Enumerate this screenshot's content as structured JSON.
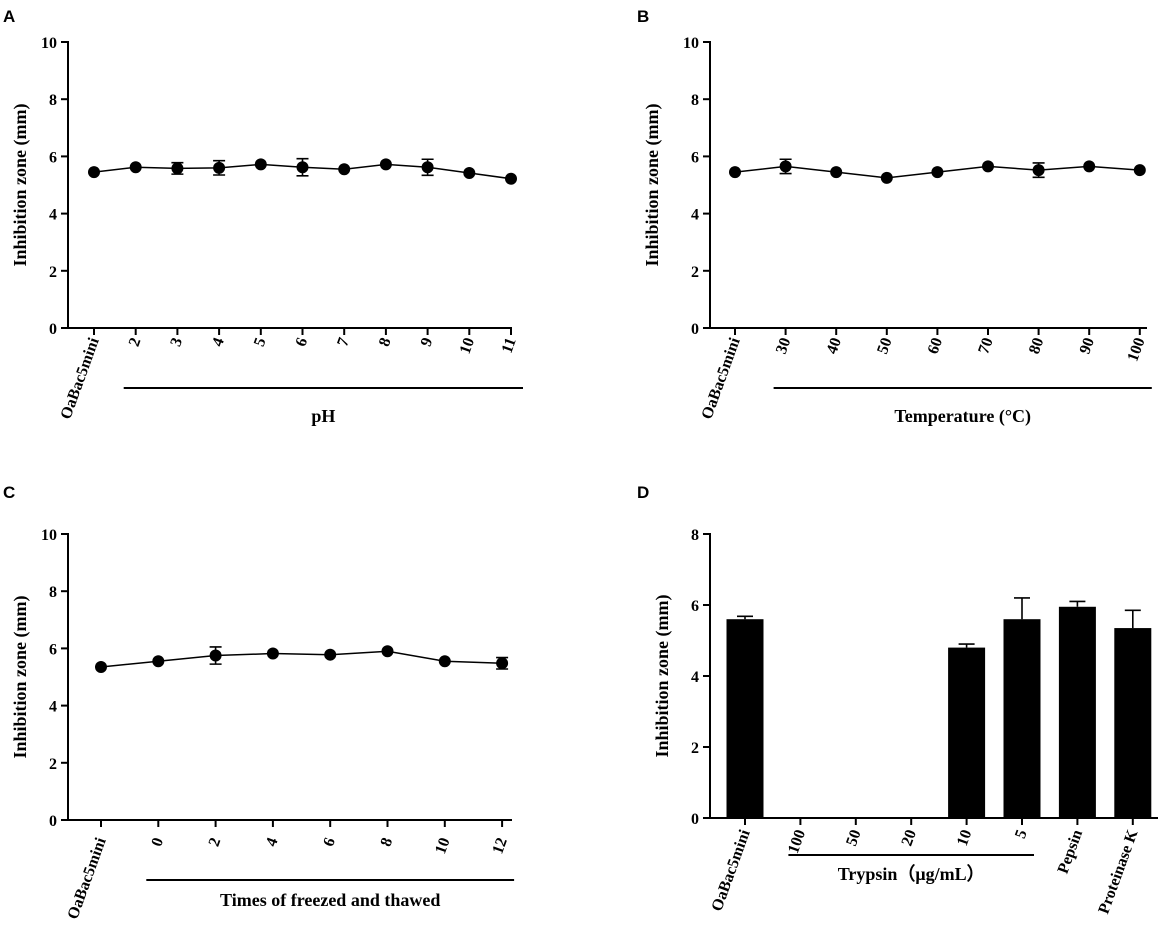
{
  "chart_data": [
    {
      "panel": "A",
      "type": "line",
      "ylabel": "Inhibition zone (mm)",
      "ylim": [
        0,
        10
      ],
      "yticks": [
        0,
        2,
        4,
        6,
        8,
        10
      ],
      "categories": [
        "OaBac5mini",
        "2",
        "3",
        "4",
        "5",
        "6",
        "7",
        "8",
        "9",
        "10",
        "11"
      ],
      "values": [
        5.45,
        5.62,
        5.58,
        5.6,
        5.72,
        5.62,
        5.55,
        5.72,
        5.62,
        5.42,
        5.22
      ],
      "errors": [
        0.05,
        0.06,
        0.2,
        0.25,
        0.05,
        0.3,
        0.08,
        0.07,
        0.28,
        0.05,
        0.06
      ],
      "group": {
        "label": "pH",
        "from": 1,
        "to": 10
      }
    },
    {
      "panel": "B",
      "type": "line",
      "ylabel": "Inhibition zone (mm)",
      "ylim": [
        0,
        10
      ],
      "yticks": [
        0,
        2,
        4,
        6,
        8,
        10
      ],
      "categories": [
        "OaBac5mini",
        "30",
        "40",
        "50",
        "60",
        "70",
        "80",
        "90",
        "100"
      ],
      "values": [
        5.45,
        5.65,
        5.45,
        5.25,
        5.45,
        5.65,
        5.52,
        5.65,
        5.52
      ],
      "errors": [
        0.05,
        0.25,
        0.05,
        0.06,
        0.05,
        0.06,
        0.25,
        0.06,
        0.06
      ],
      "group": {
        "label": "Temperature (°C)",
        "from": 1,
        "to": 8
      }
    },
    {
      "panel": "C",
      "type": "line",
      "ylabel": "Inhibition zone (mm)",
      "ylim": [
        0,
        10
      ],
      "yticks": [
        0,
        2,
        4,
        6,
        8,
        10
      ],
      "categories": [
        "OaBac5mini",
        "0",
        "2",
        "4",
        "6",
        "8",
        "10",
        "12"
      ],
      "values": [
        5.35,
        5.55,
        5.75,
        5.82,
        5.78,
        5.9,
        5.55,
        5.48
      ],
      "errors": [
        0.05,
        0.06,
        0.3,
        0.06,
        0.06,
        0.06,
        0.05,
        0.2
      ],
      "group": {
        "label": "Times of freezed and thawed",
        "from": 1,
        "to": 7
      }
    },
    {
      "panel": "D",
      "type": "bar",
      "ylabel": "Inhibition zone (mm)",
      "ylim": [
        0,
        8
      ],
      "yticks": [
        0,
        2,
        4,
        6,
        8
      ],
      "categories": [
        "OaBac5mini",
        "100",
        "50",
        "20",
        "10",
        "5",
        "Pepsin",
        "Proteinase K"
      ],
      "values": [
        5.6,
        0,
        0,
        0,
        4.8,
        5.6,
        5.95,
        5.35
      ],
      "errors": [
        0.08,
        0,
        0,
        0,
        0.1,
        0.6,
        0.15,
        0.5
      ],
      "group": {
        "label": "Trypsin（μg/mL）",
        "from": 1,
        "to": 5
      }
    }
  ]
}
